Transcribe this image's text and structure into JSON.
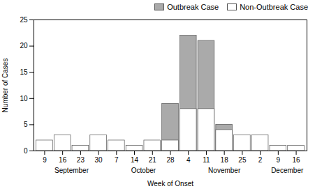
{
  "chart_data": {
    "type": "bar",
    "xlabel": "Week of Onset",
    "ylabel": "Number of Cases",
    "categories": [
      "9",
      "16",
      "23",
      "30",
      "7",
      "14",
      "21",
      "28",
      "4",
      "11",
      "18",
      "25",
      "2",
      "9",
      "16"
    ],
    "series": [
      {
        "name": "Outbreak Case",
        "color": "#aaaaaa",
        "values": [
          0,
          0,
          0,
          0,
          0,
          0,
          0,
          9,
          22,
          21,
          5,
          0,
          0,
          0,
          0
        ]
      },
      {
        "name": "Non-Outbreak Case",
        "color": "#ffffff",
        "values": [
          2,
          3,
          1,
          3,
          2,
          1,
          2,
          2,
          8,
          8,
          4,
          3,
          3,
          1,
          1
        ]
      }
    ],
    "annotations": [
      {
        "text": "September",
        "x": 1.5
      },
      {
        "text": "October",
        "x": 5.5
      },
      {
        "text": "November",
        "x": 10.0
      },
      {
        "text": "December",
        "x": 13.5
      }
    ],
    "ylim": [
      0,
      25
    ],
    "yticks": [
      0,
      5,
      10,
      15,
      20,
      25
    ],
    "grid": false,
    "stacked": false,
    "legend": "upper right"
  }
}
